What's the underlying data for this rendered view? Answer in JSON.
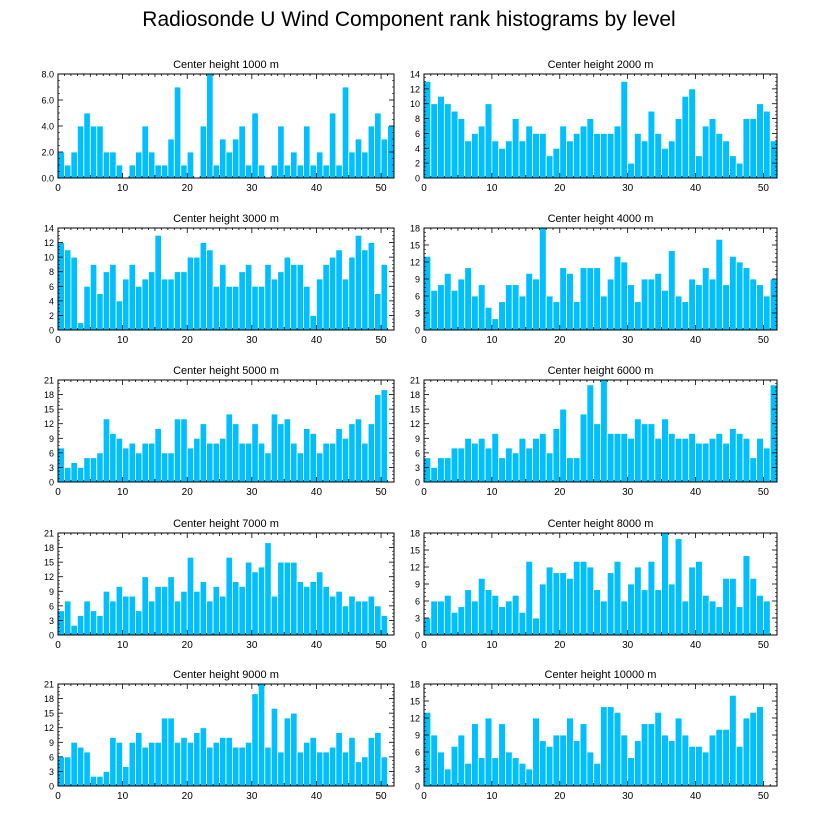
{
  "title": "Radiosonde U Wind Component rank histograms by level",
  "colors": {
    "bar": "#00bfff",
    "bar_edge": "#ffffff",
    "axis": "#000000"
  },
  "chart_data": [
    {
      "type": "bar",
      "title": "Center height 1000 m",
      "xlim": [
        0,
        52
      ],
      "xticks": [
        0,
        10,
        20,
        30,
        40,
        50
      ],
      "ylim": [
        0,
        8
      ],
      "yticks": [
        0,
        2,
        4,
        6,
        8
      ],
      "ytick_labels": [
        "0.0",
        "2.0",
        "4.0",
        "6.0",
        "8.0"
      ],
      "values": [
        2,
        1,
        2,
        4,
        5,
        4,
        4,
        2,
        2,
        1,
        0,
        1,
        2,
        4,
        2,
        1,
        1,
        3,
        7,
        1,
        2,
        0,
        4,
        8,
        1,
        3,
        2,
        3,
        4,
        1,
        5,
        1,
        0,
        1,
        4,
        1,
        2,
        1,
        4,
        1,
        2,
        1,
        5,
        1,
        7,
        2,
        3,
        2,
        4,
        5,
        3,
        4
      ]
    },
    {
      "type": "bar",
      "title": "Center height 2000 m",
      "xlim": [
        0,
        52
      ],
      "xticks": [
        0,
        10,
        20,
        30,
        40,
        50
      ],
      "ylim": [
        0,
        14
      ],
      "yticks": [
        0,
        2,
        4,
        6,
        8,
        10,
        12,
        14
      ],
      "ytick_labels": [
        "0",
        "2",
        "4",
        "6",
        "8",
        "10",
        "12",
        "14"
      ],
      "values": [
        13,
        10,
        11,
        10,
        9,
        8,
        5,
        6,
        7,
        10,
        5,
        4,
        5,
        8,
        5,
        7,
        6,
        6,
        3,
        4,
        7,
        5,
        6,
        7,
        8,
        6,
        6,
        6,
        7,
        13,
        2,
        6,
        5,
        9,
        6,
        4,
        5,
        8,
        11,
        12,
        3,
        7,
        8,
        6,
        5,
        3,
        2,
        8,
        8,
        10,
        9,
        5
      ]
    },
    {
      "type": "bar",
      "title": "Center height 3000 m",
      "xlim": [
        0,
        52
      ],
      "xticks": [
        0,
        10,
        20,
        30,
        40,
        50
      ],
      "ylim": [
        0,
        14
      ],
      "yticks": [
        0,
        2,
        4,
        6,
        8,
        10,
        12,
        14
      ],
      "ytick_labels": [
        "0",
        "2",
        "4",
        "6",
        "8",
        "10",
        "12",
        "14"
      ],
      "values": [
        12,
        11,
        10,
        1,
        6,
        9,
        5,
        8,
        9,
        4,
        7,
        9,
        6,
        7,
        8,
        13,
        7,
        7,
        8,
        8,
        10,
        10,
        12,
        11,
        6,
        9,
        6,
        6,
        8,
        9,
        6,
        6,
        9,
        7,
        8,
        10,
        9,
        9,
        6,
        2,
        7,
        9,
        10,
        11,
        7,
        10,
        13,
        11,
        12,
        5,
        9,
        0
      ]
    },
    {
      "type": "bar",
      "title": "Center height 4000 m",
      "xlim": [
        0,
        52
      ],
      "xticks": [
        0,
        10,
        20,
        30,
        40,
        50
      ],
      "ylim": [
        0,
        18
      ],
      "yticks": [
        0,
        3,
        6,
        9,
        12,
        15,
        18
      ],
      "ytick_labels": [
        "0",
        "3",
        "6",
        "9",
        "12",
        "15",
        "18"
      ],
      "values": [
        13,
        7,
        8,
        10,
        7,
        9,
        11,
        6,
        8,
        4,
        2,
        5,
        8,
        8,
        6,
        10,
        9,
        18,
        6,
        5,
        11,
        10,
        5,
        11,
        11,
        11,
        6,
        9,
        13,
        12,
        8,
        5,
        9,
        9,
        10,
        7,
        14,
        6,
        5,
        9,
        8,
        11,
        9,
        16,
        8,
        13,
        12,
        11,
        9,
        8,
        6,
        9
      ]
    },
    {
      "type": "bar",
      "title": "Center height 5000 m",
      "xlim": [
        0,
        52
      ],
      "xticks": [
        0,
        10,
        20,
        30,
        40,
        50
      ],
      "ylim": [
        0,
        21
      ],
      "yticks": [
        0,
        3,
        6,
        9,
        12,
        15,
        18,
        21
      ],
      "ytick_labels": [
        "0",
        "3",
        "6",
        "9",
        "12",
        "15",
        "18",
        "21"
      ],
      "values": [
        7,
        3,
        4,
        3,
        5,
        5,
        6,
        13,
        10,
        9,
        7,
        8,
        6,
        8,
        8,
        11,
        6,
        6,
        13,
        13,
        7,
        9,
        12,
        8,
        8,
        9,
        14,
        12,
        8,
        8,
        12,
        8,
        6,
        14,
        12,
        13,
        8,
        6,
        11,
        10,
        6,
        8,
        8,
        11,
        9,
        12,
        13,
        8,
        12,
        18,
        19,
        0
      ]
    },
    {
      "type": "bar",
      "title": "Center height 6000 m",
      "xlim": [
        0,
        52
      ],
      "xticks": [
        0,
        10,
        20,
        30,
        40,
        50
      ],
      "ylim": [
        0,
        21
      ],
      "yticks": [
        0,
        3,
        6,
        9,
        12,
        15,
        18,
        21
      ],
      "ytick_labels": [
        "0",
        "3",
        "6",
        "9",
        "12",
        "15",
        "18",
        "21"
      ],
      "values": [
        5,
        3,
        5,
        5,
        7,
        7,
        9,
        8,
        9,
        7,
        10,
        5,
        7,
        6,
        9,
        7,
        9,
        10,
        6,
        11,
        15,
        5,
        5,
        14,
        20,
        12,
        21,
        10,
        10,
        10,
        9,
        13,
        12,
        12,
        9,
        13,
        10,
        9,
        9,
        10,
        8,
        8,
        9,
        10,
        8,
        11,
        10,
        9,
        5,
        9,
        7,
        20
      ]
    },
    {
      "type": "bar",
      "title": "Center height 7000 m",
      "xlim": [
        0,
        52
      ],
      "xticks": [
        0,
        10,
        20,
        30,
        40,
        50
      ],
      "ylim": [
        0,
        21
      ],
      "yticks": [
        0,
        3,
        6,
        9,
        12,
        15,
        18,
        21
      ],
      "ytick_labels": [
        "0",
        "3",
        "6",
        "9",
        "12",
        "15",
        "18",
        "21"
      ],
      "values": [
        5,
        7,
        2,
        4,
        7,
        5,
        4,
        9,
        7,
        10,
        8,
        8,
        5,
        12,
        7,
        10,
        10,
        12,
        7,
        9,
        16,
        9,
        11,
        7,
        10,
        8,
        16,
        11,
        10,
        15,
        13,
        14,
        19,
        8,
        15,
        15,
        15,
        11,
        10,
        11,
        13,
        10,
        8,
        9,
        6,
        8,
        7,
        7,
        8,
        6,
        4,
        0
      ]
    },
    {
      "type": "bar",
      "title": "Center height 8000 m",
      "xlim": [
        0,
        52
      ],
      "xticks": [
        0,
        10,
        20,
        30,
        40,
        50
      ],
      "ylim": [
        0,
        18
      ],
      "yticks": [
        0,
        3,
        6,
        9,
        12,
        15,
        18
      ],
      "ytick_labels": [
        "0",
        "3",
        "6",
        "9",
        "12",
        "15",
        "18"
      ],
      "values": [
        3,
        6,
        6,
        7,
        4,
        5,
        8,
        6,
        10,
        8,
        7,
        5,
        6,
        7,
        4,
        13,
        3,
        9,
        12,
        11,
        11,
        10,
        13,
        13,
        12,
        8,
        6,
        11,
        13,
        6,
        9,
        12,
        8,
        13,
        8,
        18,
        9,
        17,
        6,
        12,
        13,
        7,
        6,
        5,
        10,
        10,
        5,
        14,
        10,
        7,
        6,
        0
      ]
    },
    {
      "type": "bar",
      "title": "Center height 9000 m",
      "xlim": [
        0,
        52
      ],
      "xticks": [
        0,
        10,
        20,
        30,
        40,
        50
      ],
      "ylim": [
        0,
        21
      ],
      "yticks": [
        0,
        3,
        6,
        9,
        12,
        15,
        18,
        21
      ],
      "ytick_labels": [
        "0",
        "3",
        "6",
        "9",
        "12",
        "15",
        "18",
        "21"
      ],
      "values": [
        6,
        6,
        9,
        8,
        7,
        2,
        2,
        3,
        10,
        9,
        4,
        9,
        11,
        8,
        9,
        9,
        14,
        14,
        9,
        10,
        9,
        11,
        12,
        8,
        9,
        10,
        10,
        8,
        8,
        9,
        19,
        21,
        8,
        16,
        7,
        14,
        15,
        7,
        9,
        10,
        7,
        7,
        8,
        11,
        7,
        10,
        5,
        6,
        10,
        11,
        6,
        0
      ]
    },
    {
      "type": "bar",
      "title": "Center height 10000 m",
      "xlim": [
        0,
        52
      ],
      "xticks": [
        0,
        10,
        20,
        30,
        40,
        50
      ],
      "ylim": [
        0,
        18
      ],
      "yticks": [
        0,
        3,
        6,
        9,
        12,
        15,
        18
      ],
      "ytick_labels": [
        "0",
        "3",
        "6",
        "9",
        "12",
        "15",
        "18"
      ],
      "values": [
        13,
        9,
        6,
        3,
        7,
        9,
        4,
        11,
        5,
        12,
        5,
        11,
        6,
        5,
        4,
        3,
        12,
        8,
        7,
        9,
        9,
        12,
        8,
        11,
        6,
        4,
        14,
        14,
        13,
        9,
        5,
        8,
        11,
        11,
        13,
        9,
        8,
        12,
        9,
        7,
        7,
        6,
        9,
        10,
        10,
        16,
        7,
        12,
        13,
        14,
        0,
        0
      ]
    }
  ]
}
